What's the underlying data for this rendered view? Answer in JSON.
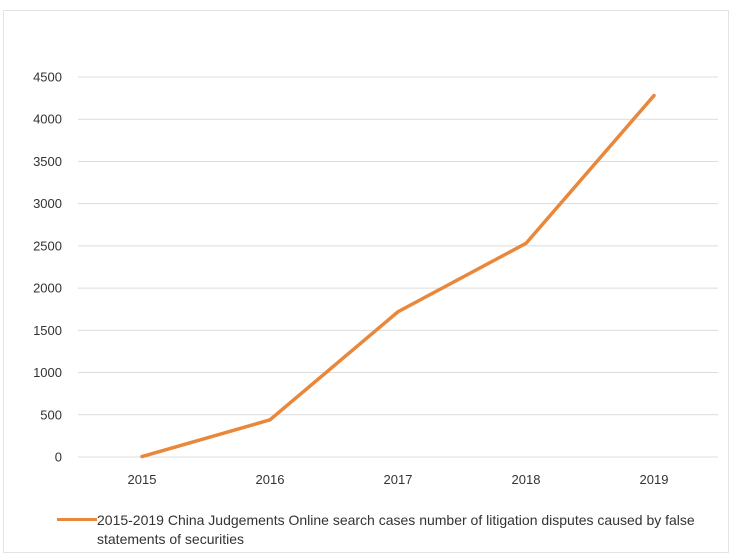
{
  "chart_data": {
    "type": "line",
    "categories": [
      "2015",
      "2016",
      "2017",
      "2018",
      "2019"
    ],
    "series": [
      {
        "name": "2015-2019 China Judgements Online search cases number of litigation disputes caused by false statements of securities",
        "values": [
          5,
          440,
          1720,
          2530,
          4280
        ],
        "color": "#e9873a"
      }
    ],
    "yticks": [
      "0",
      "500",
      "1000",
      "1500",
      "2000",
      "2500",
      "3000",
      "3500",
      "4000",
      "4500"
    ],
    "ylim": [
      0,
      4500
    ],
    "grid": true,
    "legend_position": "bottom",
    "title": "",
    "xlabel": "",
    "ylabel": ""
  }
}
